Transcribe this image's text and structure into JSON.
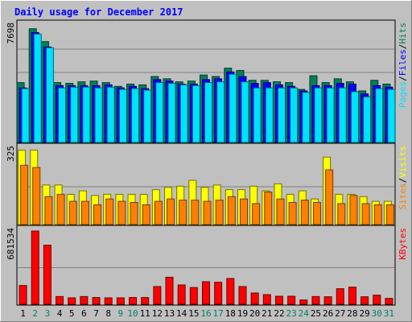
{
  "chart_data": {
    "type": "bar",
    "title": "Daily usage for December 2017",
    "categories": [
      "1",
      "2",
      "3",
      "4",
      "5",
      "6",
      "7",
      "8",
      "9",
      "10",
      "11",
      "12",
      "13",
      "14",
      "15",
      "16",
      "17",
      "18",
      "19",
      "20",
      "21",
      "22",
      "23",
      "24",
      "25",
      "26",
      "27",
      "28",
      "29",
      "30",
      "31"
    ],
    "weekend_days": [
      "2",
      "3",
      "9",
      "10",
      "16",
      "17",
      "23",
      "24",
      "30",
      "31"
    ],
    "panels": [
      {
        "id": "hits",
        "ymax_label": "7698",
        "ylim": [
          0,
          7698
        ],
        "legend": [
          "Pages",
          "/",
          "Files",
          "/",
          "Hits"
        ],
        "series": [
          {
            "name": "Hits",
            "color": "#00805C",
            "values": [
              3950,
              7500,
              6650,
              3950,
              3900,
              4000,
              4050,
              3950,
              3700,
              3850,
              3800,
              4350,
              4200,
              4000,
              4050,
              4450,
              4350,
              4900,
              4750,
              4100,
              4100,
              4000,
              3950,
              3500,
              4400,
              3950,
              4200,
              4000,
              3400,
              4100,
              3850
            ]
          },
          {
            "name": "Files",
            "color": "#0000FF",
            "values": [
              3600,
              7250,
              6300,
              3750,
              3750,
              3750,
              3750,
              3800,
              3600,
              3700,
              3550,
              4150,
              4050,
              3850,
              3850,
              4150,
              4200,
              4650,
              4350,
              3900,
              3950,
              3800,
              3700,
              3400,
              3750,
              3750,
              3900,
              3850,
              3200,
              3750,
              3650
            ]
          },
          {
            "name": "Pages",
            "color": "#00E0FF",
            "values": [
              3550,
              7150,
              6250,
              3600,
              3650,
              3650,
              3600,
              3650,
              3500,
              3550,
              3450,
              3950,
              3900,
              3800,
              3750,
              3950,
              4000,
              4500,
              4000,
              3600,
              3600,
              3600,
              3600,
              3300,
              3600,
              3600,
              3600,
              3350,
              3000,
              3550,
              3500
            ]
          }
        ]
      },
      {
        "id": "visits",
        "ymax_label": "325",
        "ylim": [
          0,
          325
        ],
        "legend": [
          "Sites",
          "/",
          "Visits"
        ],
        "series": [
          {
            "name": "Visits",
            "color": "#FFFF00",
            "values": [
              320,
              320,
              170,
              170,
              130,
              145,
              125,
              130,
              130,
              130,
              130,
              150,
              160,
              165,
              190,
              160,
              170,
              150,
              150,
              165,
              145,
              175,
              130,
              145,
              110,
              290,
              130,
              130,
              120,
              100,
              100
            ]
          },
          {
            "name": "Sites",
            "color": "#FF8000",
            "values": [
              255,
              245,
              120,
              130,
              100,
              100,
              85,
              110,
              100,
              95,
              85,
              100,
              110,
              105,
              105,
              100,
              105,
              120,
              110,
              90,
              140,
              110,
              95,
              105,
              95,
              235,
              90,
              125,
              90,
              85,
              85
            ]
          }
        ]
      },
      {
        "id": "kbytes",
        "ymax_label": "681534",
        "ylim": [
          0,
          681534
        ],
        "legend": [
          "KBytes"
        ],
        "series": [
          {
            "name": "KBytes",
            "color": "#FF0000",
            "values": [
              175000,
              681534,
              550000,
              72000,
              60000,
              72000,
              63000,
              60000,
              60000,
              63000,
              63000,
              165000,
              252000,
              180000,
              156000,
              210000,
              205000,
              240000,
              165000,
              105000,
              90000,
              75000,
              75000,
              40000,
              72000,
              70000,
              145000,
              160000,
              70000,
              85000,
              55000
            ]
          }
        ]
      }
    ]
  }
}
